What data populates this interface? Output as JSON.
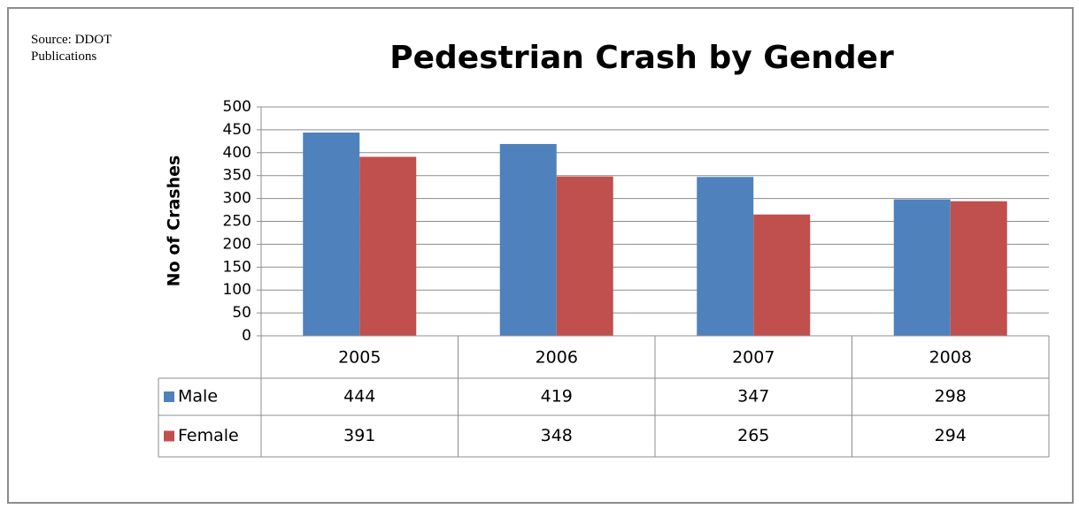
{
  "chart_data": {
    "type": "bar",
    "title": "Pedestrian Crash by Gender",
    "source": "Source: DDOT Publications",
    "y_label": "No of Crashes",
    "categories": [
      "2005",
      "2006",
      "2007",
      "2008"
    ],
    "series": [
      {
        "name": "Male",
        "color": "#4f81bd",
        "values": [
          444,
          419,
          347,
          298
        ]
      },
      {
        "name": "Female",
        "color": "#c0504d",
        "values": [
          391,
          348,
          265,
          294
        ]
      }
    ],
    "ylim": [
      0,
      500
    ],
    "yticks": [
      0,
      50,
      100,
      150,
      200,
      250,
      300,
      350,
      400,
      450,
      500
    ],
    "grid": true
  }
}
